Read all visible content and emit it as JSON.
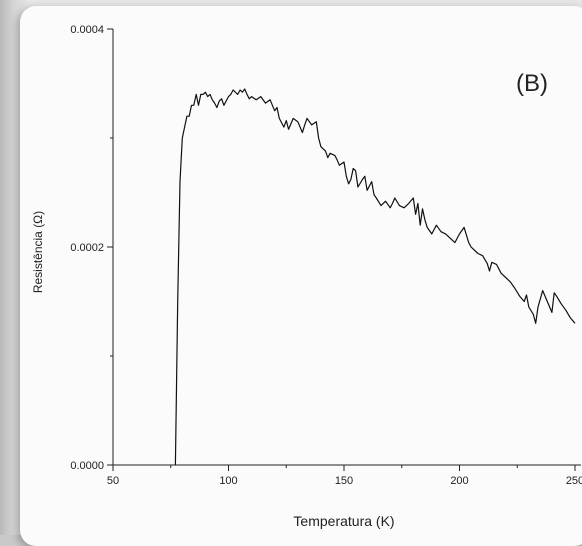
{
  "chart_data": {
    "type": "line",
    "panel_label": "(B)",
    "xlabel": "Temperatura (K)",
    "ylabel": "Resistência (Ω)",
    "xlim": [
      50,
      250
    ],
    "ylim": [
      0.0,
      0.0004
    ],
    "x_ticks": [
      50,
      100,
      150,
      200,
      250
    ],
    "x_tick_labels": [
      "50",
      "100",
      "150",
      "200",
      "250"
    ],
    "y_ticks": [
      0.0,
      0.0002,
      0.0004
    ],
    "y_tick_labels": [
      "0.0000",
      "0.0002",
      "0.0004"
    ],
    "grid": false,
    "series": [
      {
        "color": "#111111",
        "x": [
          77,
          78,
          79,
          80,
          81,
          82,
          83,
          84,
          85,
          86,
          87,
          88,
          89,
          90,
          91,
          92,
          93,
          94,
          95,
          96,
          97,
          98,
          99,
          100,
          101,
          102,
          103,
          104,
          105,
          106,
          107,
          108,
          109,
          110,
          112,
          114,
          116,
          118,
          120,
          121,
          122,
          124,
          125,
          126,
          128,
          130,
          132,
          133,
          134,
          135,
          136,
          138,
          139,
          140,
          142,
          143,
          144,
          146,
          147,
          148,
          150,
          151,
          152,
          153,
          154,
          155,
          156,
          158,
          159,
          160,
          162,
          163,
          164,
          166,
          168,
          170,
          171,
          172,
          174,
          176,
          178,
          180,
          181,
          182,
          183,
          184,
          185,
          186,
          188,
          190,
          192,
          194,
          196,
          198,
          200,
          202,
          204,
          205,
          206,
          208,
          210,
          212,
          213,
          214,
          216,
          218,
          220,
          222,
          224,
          226,
          228,
          229,
          230,
          232,
          233,
          234,
          236,
          238,
          240,
          241,
          242,
          244,
          246,
          248,
          250
        ],
        "y": [
          0.0,
          0.00015,
          0.00026,
          0.0003,
          0.00031,
          0.00032,
          0.00032,
          0.00033,
          0.00033,
          0.00034,
          0.00033,
          0.00034,
          0.00034,
          0.000342,
          0.000338,
          0.00034,
          0.000335,
          0.000332,
          0.000328,
          0.000334,
          0.000336,
          0.00033,
          0.000334,
          0.000338,
          0.00034,
          0.000344,
          0.000342,
          0.00034,
          0.000344,
          0.000342,
          0.000345,
          0.00034,
          0.000336,
          0.000338,
          0.000335,
          0.000338,
          0.000332,
          0.000335,
          0.000325,
          0.000328,
          0.000318,
          0.00031,
          0.000316,
          0.000308,
          0.000318,
          0.000315,
          0.000305,
          0.000312,
          0.000318,
          0.000315,
          0.000312,
          0.000315,
          0.0003,
          0.000292,
          0.000288,
          0.000282,
          0.000286,
          0.000284,
          0.00028,
          0.000275,
          0.000278,
          0.000265,
          0.000258,
          0.000262,
          0.000272,
          0.00027,
          0.000255,
          0.000262,
          0.000265,
          0.000252,
          0.00026,
          0.000248,
          0.000245,
          0.000238,
          0.000242,
          0.000236,
          0.00024,
          0.000245,
          0.000238,
          0.000236,
          0.00024,
          0.000245,
          0.00023,
          0.00024,
          0.00022,
          0.000235,
          0.000225,
          0.000218,
          0.000212,
          0.00022,
          0.000214,
          0.000212,
          0.000208,
          0.000204,
          0.000212,
          0.000218,
          0.000204,
          0.0002,
          0.000198,
          0.000194,
          0.000192,
          0.000185,
          0.000178,
          0.000186,
          0.000184,
          0.000176,
          0.000172,
          0.000168,
          0.000162,
          0.000155,
          0.00015,
          0.000156,
          0.000145,
          0.000138,
          0.00013,
          0.000145,
          0.00016,
          0.00015,
          0.00014,
          0.000158,
          0.000155,
          0.000148,
          0.000142,
          0.000135,
          0.00013
        ]
      }
    ]
  }
}
